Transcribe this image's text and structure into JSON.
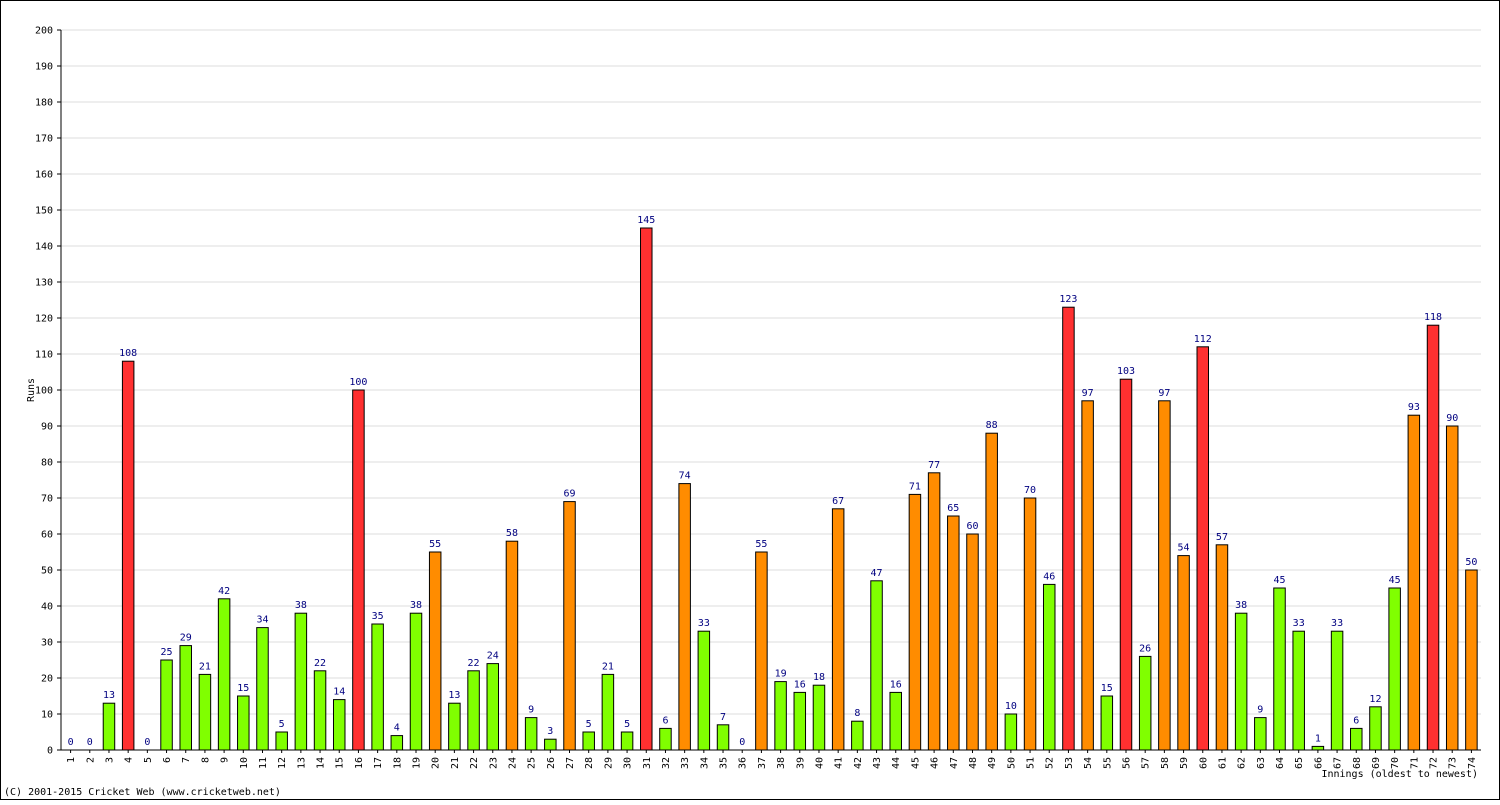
{
  "chart_data": {
    "type": "bar",
    "xlabel": "Innings (oldest to newest)",
    "ylabel": "Runs",
    "ylim": [
      0,
      200
    ],
    "y_ticks": [
      0,
      10,
      20,
      30,
      40,
      50,
      60,
      70,
      80,
      90,
      100,
      110,
      120,
      130,
      140,
      150,
      160,
      170,
      180,
      190,
      200
    ],
    "grid": true,
    "colors": {
      "under_50": "#80ff00",
      "fifty_to_99": "#ff8c00",
      "hundred_plus": "#ff3030"
    },
    "categories": [
      "1",
      "2",
      "3",
      "4",
      "5",
      "6",
      "7",
      "8",
      "9",
      "10",
      "11",
      "12",
      "13",
      "14",
      "15",
      "16",
      "17",
      "18",
      "19",
      "20",
      "21",
      "22",
      "23",
      "24",
      "25",
      "26",
      "27",
      "28",
      "29",
      "30",
      "31",
      "32",
      "33",
      "34",
      "35",
      "36",
      "37",
      "38",
      "39",
      "40",
      "41",
      "42",
      "43",
      "44",
      "45",
      "46",
      "47",
      "48",
      "49",
      "50",
      "51",
      "52",
      "53",
      "54",
      "55",
      "56",
      "57",
      "58",
      "59",
      "60",
      "61",
      "62",
      "63",
      "64",
      "65",
      "66",
      "67",
      "68",
      "69",
      "70",
      "71",
      "72",
      "73",
      "74"
    ],
    "values": [
      0,
      0,
      13,
      108,
      0,
      25,
      29,
      21,
      42,
      15,
      34,
      5,
      38,
      22,
      14,
      100,
      35,
      4,
      38,
      55,
      13,
      22,
      24,
      58,
      9,
      3,
      69,
      5,
      21,
      5,
      145,
      6,
      74,
      33,
      7,
      0,
      55,
      19,
      16,
      18,
      67,
      8,
      47,
      16,
      71,
      77,
      65,
      60,
      88,
      10,
      70,
      46,
      123,
      97,
      15,
      103,
      26,
      97,
      54,
      112,
      57,
      38,
      9,
      45,
      33,
      1,
      33,
      6,
      12,
      45,
      93,
      118,
      90,
      50
    ]
  },
  "footer": {
    "copyright": "(C) 2001-2015 Cricket Web (www.cricketweb.net)"
  }
}
